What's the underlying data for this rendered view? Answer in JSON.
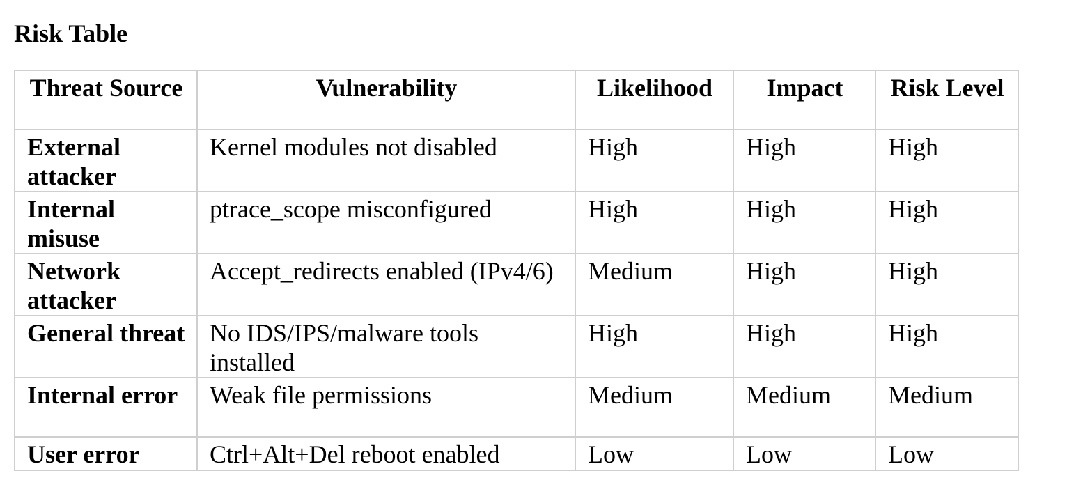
{
  "title": "Risk Table",
  "table": {
    "headers": [
      "Threat Source",
      "Vulnerability",
      "Likelihood",
      "Impact",
      "Risk Level"
    ],
    "rows": [
      [
        "External attacker",
        "Kernel modules not disabled",
        "High",
        "High",
        "High"
      ],
      [
        "Internal misuse",
        "ptrace_scope misconfigured",
        "High",
        "High",
        "High"
      ],
      [
        "Network attacker",
        "Accept_redirects enabled (IPv4/6)",
        "Medium",
        "High",
        "High"
      ],
      [
        "General threat",
        "No IDS/IPS/malware tools installed",
        "High",
        "High",
        "High"
      ],
      [
        "Internal error",
        "Weak file permissions",
        "Medium",
        "Medium",
        "Medium"
      ],
      [
        "User error",
        "Ctrl+Alt+Del reboot enabled",
        "Low",
        "Low",
        "Low"
      ]
    ]
  }
}
